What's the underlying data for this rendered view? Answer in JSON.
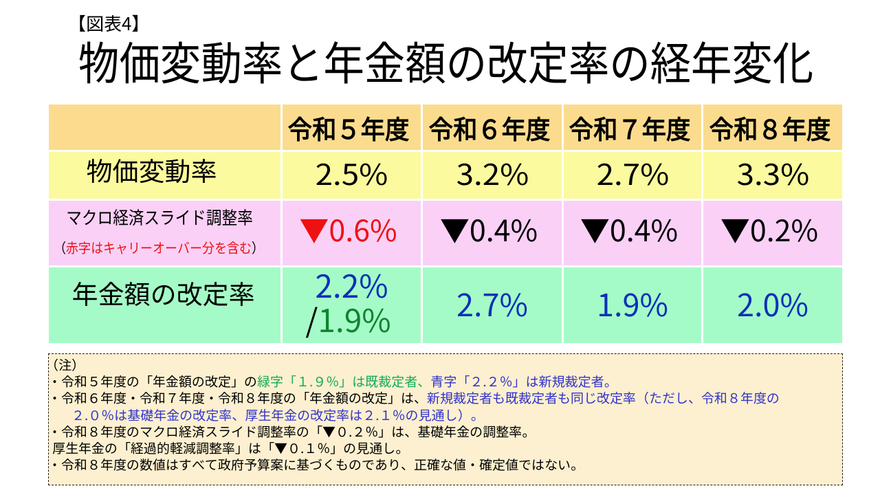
{
  "chart_data": {
    "type": "table",
    "title": "物価変動率と年金額の改定率の経年変化",
    "categories": [
      "令和５年度",
      "令和６年度",
      "令和７年度",
      "令和８年度"
    ],
    "series": [
      {
        "name": "物価変動率",
        "values": [
          "2.5%",
          "3.2%",
          "2.7%",
          "3.3%"
        ]
      },
      {
        "name": "マクロ経済スライド調整率（赤字はキャリーオーバー分を含む）",
        "values": [
          "▼0.6%",
          "▼0.4%",
          "▼0.4%",
          "▼0.2%"
        ]
      },
      {
        "name": "年金額の改定率",
        "values": [
          "2.2%/1.9%",
          "2.7%",
          "1.9%",
          "2.0%"
        ]
      }
    ]
  },
  "colors": {
    "header_bg": "#fbdc8e",
    "cpi_bg": "#fbfa9e",
    "macro_bg": "#fad0f7",
    "rev_bg": "#a5fbc7",
    "note_bg": "#fcf0d0",
    "text_black": "#000000",
    "text_red": "#ee1111",
    "table_blue": "#0c31b8",
    "table_green": "#108430",
    "note_green": "#12ac58",
    "note_blue": "#3333cc"
  },
  "fig_label": "【図表4】",
  "title": "物価変動率と年金額の改定率の経年変化",
  "table": {
    "corner": "",
    "col_headers": [
      "令和５年度",
      "令和６年度",
      "令和７年度",
      "令和８年度"
    ],
    "rows": {
      "cpi": {
        "label": "物価変動率",
        "values": [
          {
            "text": "2.5%",
            "color": "#000000"
          },
          {
            "text": "3.2%",
            "color": "#000000"
          },
          {
            "text": "2.7%",
            "color": "#000000"
          },
          {
            "text": "3.3%",
            "color": "#000000"
          }
        ]
      },
      "macro": {
        "label": "マクロ経済スライド調整率",
        "sublabel_paren_open": "（",
        "sublabel": "赤字はキャリーオーバー分を含む",
        "sublabel_paren_close": "）",
        "sublabel_color": "#ee1111",
        "values": [
          {
            "text": "▼0.6%",
            "color": "#ee1111"
          },
          {
            "text": "▼0.4%",
            "color": "#000000"
          },
          {
            "text": "▼0.4%",
            "color": "#000000"
          },
          {
            "text": "▼0.2%",
            "color": "#000000"
          }
        ]
      },
      "revision": {
        "label": "年金額の改定率",
        "first_cell": {
          "line1": {
            "text": "2.2%",
            "color": "#0c31b8"
          },
          "line2_slash": {
            "text": "/",
            "color": "#000000"
          },
          "line2": {
            "text": "1.9%",
            "color": "#108430"
          }
        },
        "values": [
          {
            "text": "2.7%",
            "color": "#0c31b8"
          },
          {
            "text": "1.9%",
            "color": "#0c31b8"
          },
          {
            "text": "2.0%",
            "color": "#0c31b8"
          }
        ]
      }
    }
  },
  "note": {
    "lines": [
      {
        "indent": "none",
        "segments": [
          {
            "text": "（注）",
            "color": "#000000"
          }
        ]
      },
      {
        "indent": "none",
        "segments": [
          {
            "text": "・令和５年度の「年金額の改定」の",
            "color": "#000000"
          },
          {
            "text": "緑字「１.９％」は既裁定者、",
            "color": "#12ac58"
          },
          {
            "text": "青字「２.２％」は新規裁定者。",
            "color": "#3333cc"
          }
        ]
      },
      {
        "indent": "none",
        "segments": [
          {
            "text": "・令和６年度・令和７年度・令和８年度の「年金額の改定」は、",
            "color": "#000000"
          },
          {
            "text": "新規裁定者も既裁定者も同じ改定率（ただし、令和８年度の",
            "color": "#3333cc"
          }
        ]
      },
      {
        "indent": "full",
        "segments": [
          {
            "text": "２.０％は基礎年金の改定率、厚生年金の改定率は２.１％の見通し）。",
            "color": "#3333cc"
          }
        ]
      },
      {
        "indent": "none",
        "segments": [
          {
            "text": "・令和８年度のマクロ経済スライド調整率の「▼０.２％」は、基礎年金の調整率。",
            "color": "#000000"
          }
        ]
      },
      {
        "indent": "half",
        "segments": [
          {
            "text": "厚生年金の「経過的軽減調整率」は「▼０.１％」の見通し。",
            "color": "#000000"
          }
        ]
      },
      {
        "indent": "none",
        "segments": [
          {
            "text": "・令和８年度の数値はすべて政府予算案に基づくものであり、正確な値・確定値ではない。",
            "color": "#000000"
          }
        ]
      }
    ]
  }
}
